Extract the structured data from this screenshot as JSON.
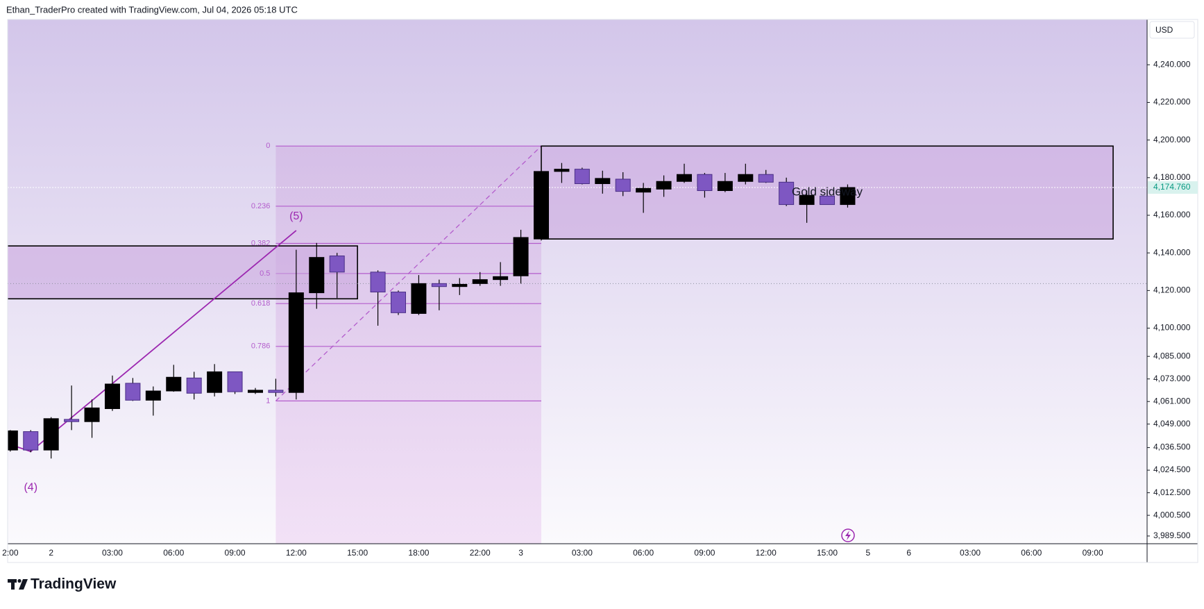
{
  "header": "Ethan_TraderPro created with TradingView.com, Jul 04, 2026 05:18 UTC",
  "footer": "TradingView",
  "chart_data": {
    "type": "candlestick",
    "currency": "USD",
    "categories": [
      "2:00",
      null,
      "2",
      null,
      null,
      "03:00",
      null,
      null,
      "06:00",
      null,
      null,
      "09:00",
      null,
      null,
      "12:00",
      null,
      null,
      "15:00",
      null,
      null,
      "18:00",
      null,
      null,
      "22:00",
      null,
      "3",
      null,
      null,
      "03:00",
      null,
      null,
      "06:00",
      null,
      null,
      "09:00",
      null,
      null,
      "12:00",
      null,
      null,
      "15:00",
      null,
      "5",
      null,
      "6",
      null,
      null,
      "03:00",
      null,
      null,
      "06:00",
      null,
      null,
      "09:00",
      null,
      null
    ],
    "open": [
      4035.2,
      4045.0,
      4035.2,
      4051.5,
      4050.3,
      4057.2,
      4070.7,
      4061.7,
      4066.6,
      4073.5,
      4065.8,
      4076.8,
      4065.8,
      4067.0,
      4065.8,
      4118.8,
      4138.4,
      null,
      4129.8,
      4119.2,
      4107.8,
      4123.7,
      4122.1,
      4123.7,
      4125.8,
      4127.8,
      4147.4,
      4183.3,
      4184.5,
      4176.8,
      4179.2,
      4172.3,
      4173.9,
      4178.0,
      4181.7,
      4173.1,
      4178.0,
      4181.7,
      4177.6,
      4165.7,
      4170.2,
      4165.7,
      null,
      null,
      null,
      null,
      null,
      null,
      null,
      null,
      null,
      null,
      null,
      null,
      null,
      null
    ],
    "high": [
      4045.8,
      4045.8,
      4052.7,
      4069.5,
      4062.1,
      4074.8,
      4073.5,
      4069.0,
      4080.5,
      4076.8,
      4080.9,
      4076.8,
      4068.2,
      4073.1,
      4141.7,
      4145.3,
      4140.0,
      null,
      4130.7,
      4120.0,
      4128.2,
      4125.8,
      4126.6,
      4129.8,
      4135.1,
      4152.3,
      4183.3,
      4187.8,
      4185.3,
      4183.7,
      4182.9,
      4177.2,
      4181.2,
      4187.4,
      4182.5,
      4182.5,
      4187.4,
      4184.1,
      4180.0,
      4173.1,
      4170.6,
      4176.4,
      null,
      null,
      null,
      null,
      null,
      null,
      null,
      null,
      null,
      null,
      null,
      null,
      null,
      null
    ],
    "low": [
      4034.4,
      4034.0,
      4030.7,
      4045.8,
      4041.7,
      4056.0,
      4061.3,
      4053.5,
      4066.2,
      4062.1,
      4063.7,
      4065.0,
      4065.0,
      4063.7,
      4062.1,
      4110.3,
      4116.0,
      null,
      4101.3,
      4107.0,
      4107.0,
      4109.5,
      4117.6,
      4122.5,
      4122.5,
      4123.7,
      4146.6,
      4177.2,
      4176.4,
      4171.5,
      4170.2,
      4161.3,
      4169.8,
      4177.2,
      4169.4,
      4172.3,
      4176.4,
      4177.2,
      4164.9,
      4156.0,
      4165.7,
      4164.1,
      null,
      null,
      null,
      null,
      null,
      null,
      null,
      null,
      null,
      null,
      null,
      null,
      null,
      null
    ],
    "close": [
      4045.4,
      4035.2,
      4051.9,
      4050.3,
      4057.6,
      4070.3,
      4061.7,
      4066.6,
      4073.9,
      4065.4,
      4076.8,
      4066.2,
      4067.0,
      4065.8,
      4118.8,
      4137.6,
      4129.8,
      null,
      4119.2,
      4108.2,
      4123.7,
      4122.1,
      4123.3,
      4125.8,
      4127.4,
      4148.2,
      4183.3,
      4184.5,
      4176.8,
      4179.6,
      4172.7,
      4174.3,
      4178.0,
      4181.7,
      4173.1,
      4178.0,
      4181.7,
      4177.6,
      4165.7,
      4170.6,
      4165.7,
      4174.76,
      null,
      null,
      null,
      null,
      null,
      null,
      null,
      null,
      null,
      null,
      null,
      null,
      null,
      null
    ],
    "up_color": "#000000",
    "down_color": "#7e57c2",
    "ylim": [
      3985.4,
      4264.1
    ],
    "yticks": [
      {
        "value": 4240,
        "label": "4,240.000"
      },
      {
        "value": 4220,
        "label": "4,220.000"
      },
      {
        "value": 4200,
        "label": "4,200.000"
      },
      {
        "value": 4180,
        "label": "4,180.000"
      },
      {
        "value": 4160,
        "label": "4,160.000"
      },
      {
        "value": 4140,
        "label": "4,140.000"
      },
      {
        "value": 4120,
        "label": "4,120.000"
      },
      {
        "value": 4100,
        "label": "4,100.000"
      },
      {
        "value": 4085,
        "label": "4,085.000"
      },
      {
        "value": 4073,
        "label": "4,073.000"
      },
      {
        "value": 4061,
        "label": "4,061.000"
      },
      {
        "value": 4049,
        "label": "4,049.000"
      },
      {
        "value": 4036.5,
        "label": "4,036.500"
      },
      {
        "value": 4024.5,
        "label": "4,024.500"
      },
      {
        "value": 4012.5,
        "label": "4,012.500"
      },
      {
        "value": 4000.5,
        "label": "4,000.500"
      },
      {
        "value": 3989.5,
        "label": "3,989.500"
      }
    ],
    "last_price": {
      "value": 4174.76,
      "label": "4,174.760"
    },
    "price_line": 4123.7,
    "fib": {
      "levels": [
        0,
        0.236,
        0.382,
        0.5,
        0.618,
        0.786,
        1
      ],
      "price_0": 4196.8,
      "price_1": 4061.3,
      "x": [
        13,
        26
      ]
    },
    "boxes": [
      {
        "x": [
          -0.15,
          17
        ],
        "top": 4143.7,
        "bottom": 4115.6
      },
      {
        "x": [
          26,
          54
        ],
        "top": 4196.8,
        "bottom": 4147.4,
        "text": "Gold sideway"
      }
    ],
    "wave": [
      {
        "x": -0.1,
        "price": 4038.5
      },
      {
        "x": 1,
        "price": 4034.4,
        "label": "(4)"
      },
      {
        "x": 14,
        "price": 4151.9,
        "label": "(5)"
      }
    ]
  }
}
